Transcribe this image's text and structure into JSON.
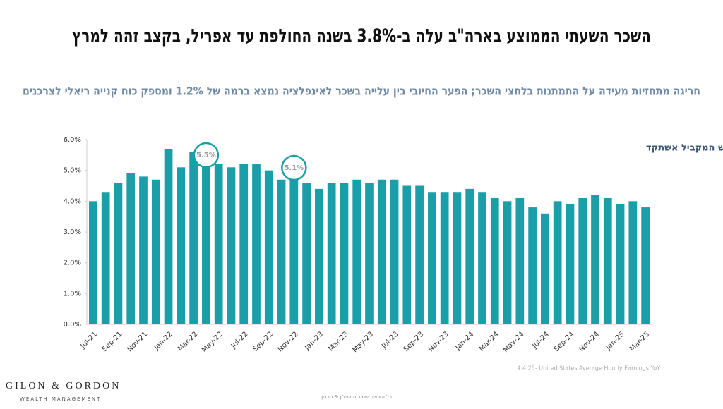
{
  "header": {
    "title": "השכר השעתי הממוצע בארה\"ב עלה ב-3.8% בשנה החולפת עד אפריל, בקצב זהה למרץ",
    "subtitle": "חריגה מתחזיות מעידה על התמתנות בלחצי השכר; הפער החיובי בין עלייה בשכר לאינפלציה נמצא ברמה של 1.2% ומספק כוח קנייה ריאלי לצרכנים"
  },
  "chart_data": {
    "type": "bar",
    "title": "השינוי בשכר השעתי - ביחס לחודש המקביל אשתקד",
    "color": "#1a9fa9",
    "categories": [
      "Jul-21",
      null,
      "Sep-21",
      null,
      "Nov-21",
      null,
      "Jan-22",
      null,
      "Mar-22",
      null,
      "May-22",
      null,
      "Jul-22",
      null,
      "Sep-22",
      null,
      "Nov-22",
      null,
      "Jan-23",
      null,
      "Mar-23",
      null,
      "May-23",
      null,
      "Jul-23",
      null,
      "Sep-23",
      null,
      "Nov-23",
      null,
      "Jan-24",
      null,
      "Mar-24",
      null,
      "May-24",
      null,
      "Jul-24",
      null,
      "Sep-24",
      null,
      "Nov-24",
      null,
      "Jan-25",
      null,
      "Mar-25"
    ],
    "values": [
      4.0,
      4.3,
      4.6,
      4.9,
      4.8,
      4.7,
      5.7,
      5.1,
      5.6,
      5.5,
      5.2,
      5.1,
      5.2,
      5.2,
      5.0,
      4.7,
      4.8,
      4.6,
      4.4,
      4.6,
      4.6,
      4.7,
      4.6,
      4.7,
      4.7,
      4.5,
      4.5,
      4.3,
      4.3,
      4.3,
      4.4,
      4.3,
      4.1,
      4.0,
      4.1,
      3.8,
      3.6,
      4.0,
      3.9,
      4.1,
      4.2,
      4.1,
      3.9,
      4.0,
      3.8
    ],
    "ylim": [
      0,
      6
    ],
    "yticks": [
      {
        "value": 0,
        "label": "0.0%"
      },
      {
        "value": 1,
        "label": "1.0%"
      },
      {
        "value": 2,
        "label": "2.0%"
      },
      {
        "value": 3,
        "label": "3.0%"
      },
      {
        "value": 4,
        "label": "4.0%"
      },
      {
        "value": 5,
        "label": "5.0%"
      },
      {
        "value": 6,
        "label": "6.0%"
      }
    ],
    "annotations": [
      "5.5%",
      "5.1%"
    ],
    "source": "4.4.25- United States Average Hourly Earnings YoY"
  },
  "footer": {
    "logo": "GILON & GORDON",
    "logo_sub": "WEALTH MANAGEMENT",
    "copyright": "כל הזכויות שמורות לגילון & גורדון"
  }
}
